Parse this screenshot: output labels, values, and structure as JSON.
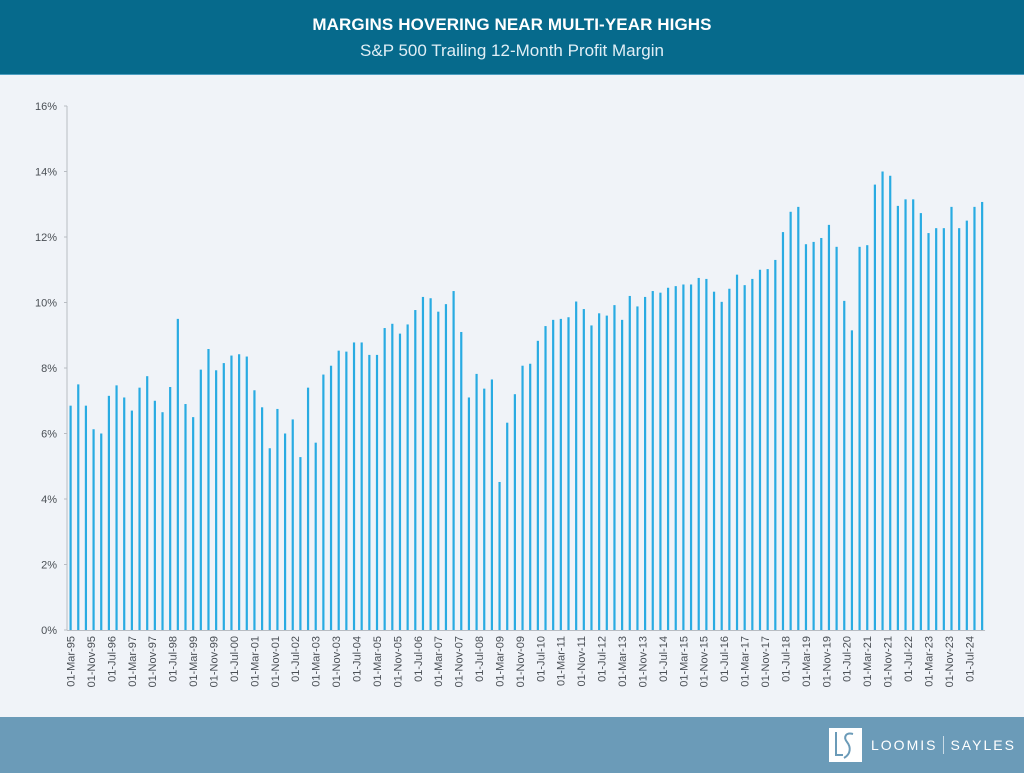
{
  "header": {
    "title": "MARGINS HOVERING NEAR MULTI-YEAR HIGHS",
    "subtitle": "S&P 500 Trailing 12-Month Profit Margin"
  },
  "footer": {
    "logo_icon": "loomis-sayles-ls-monogram",
    "brand_left": "LOOMIS",
    "brand_right": "SAYLES"
  },
  "colors": {
    "header_bg": "#066a8c",
    "bar": "#29abe2",
    "background": "#f0f3f8",
    "footer_bg": "#6b9bb8",
    "axis": "#b8bcc2"
  },
  "chart_data": {
    "type": "bar",
    "title": "MARGINS HOVERING NEAR MULTI-YEAR HIGHS",
    "subtitle": "S&P 500 Trailing 12-Month Profit Margin",
    "xlabel": "",
    "ylabel": "",
    "ylim": [
      0,
      16
    ],
    "yticks": [
      0,
      2,
      4,
      6,
      8,
      10,
      12,
      14,
      16
    ],
    "ytick_labels": [
      "0%",
      "2%",
      "4%",
      "6%",
      "8%",
      "10%",
      "12%",
      "14%",
      "16%"
    ],
    "grid": false,
    "legend": "none",
    "frequency": "quarterly",
    "start": "Mar-95",
    "xtick_every_months": 8,
    "xtick_labels": [
      "01-Mar-95",
      "01-Nov-95",
      "01-Jul-96",
      "01-Mar-97",
      "01-Nov-97",
      "01-Jul-98",
      "01-Mar-99",
      "01-Nov-99",
      "01-Jul-00",
      "01-Mar-01",
      "01-Nov-01",
      "01-Jul-02",
      "01-Mar-03",
      "01-Nov-03",
      "01-Jul-04",
      "01-Mar-05",
      "01-Nov-05",
      "01-Jul-06",
      "01-Mar-07",
      "01-Nov-07",
      "01-Jul-08",
      "01-Mar-09",
      "01-Nov-09",
      "01-Jul-10",
      "01-Mar-11",
      "01-Nov-11",
      "01-Jul-12",
      "01-Mar-13",
      "01-Nov-13",
      "01-Jul-14",
      "01-Mar-15",
      "01-Nov-15",
      "01-Jul-16",
      "01-Mar-17",
      "01-Nov-17",
      "01-Jul-18",
      "01-Mar-19",
      "01-Nov-19",
      "01-Jul-20",
      "01-Mar-21",
      "01-Nov-21",
      "01-Jul-22",
      "01-Mar-23",
      "01-Nov-23",
      "01-Jul-24"
    ],
    "series": [
      {
        "name": "S&P 500 Trailing 12-Month Profit Margin (%)",
        "values": [
          6.85,
          7.5,
          6.85,
          6.13,
          6.0,
          7.15,
          7.47,
          7.1,
          6.7,
          7.4,
          7.75,
          7.0,
          6.65,
          7.42,
          9.5,
          6.9,
          6.5,
          7.95,
          8.58,
          7.93,
          8.15,
          8.38,
          8.42,
          8.35,
          7.32,
          6.8,
          5.55,
          6.75,
          6.0,
          6.43,
          5.28,
          7.4,
          5.72,
          7.8,
          8.07,
          8.53,
          8.5,
          8.78,
          8.78,
          8.4,
          8.4,
          9.22,
          9.35,
          9.05,
          9.33,
          9.77,
          10.17,
          10.13,
          9.72,
          9.95,
          10.35,
          9.1,
          7.1,
          7.82,
          7.37,
          7.65,
          4.52,
          6.33,
          7.2,
          8.07,
          8.13,
          8.83,
          9.28,
          9.47,
          9.5,
          9.55,
          10.03,
          9.8,
          9.3,
          9.67,
          9.6,
          9.92,
          9.47,
          10.2,
          9.88,
          10.17,
          10.35,
          10.3,
          10.45,
          10.5,
          10.55,
          10.55,
          10.75,
          10.72,
          10.33,
          10.02,
          10.42,
          10.85,
          10.53,
          10.72,
          11.0,
          11.02,
          11.3,
          12.15,
          12.77,
          12.92,
          11.78,
          11.85,
          11.97,
          12.37,
          11.7,
          10.05,
          9.15,
          11.7,
          11.75,
          13.6,
          14.0,
          13.87,
          12.95,
          13.15,
          13.15,
          12.73,
          12.12,
          12.27,
          12.27,
          12.92,
          12.27,
          12.5,
          12.92,
          13.07
        ]
      }
    ]
  }
}
